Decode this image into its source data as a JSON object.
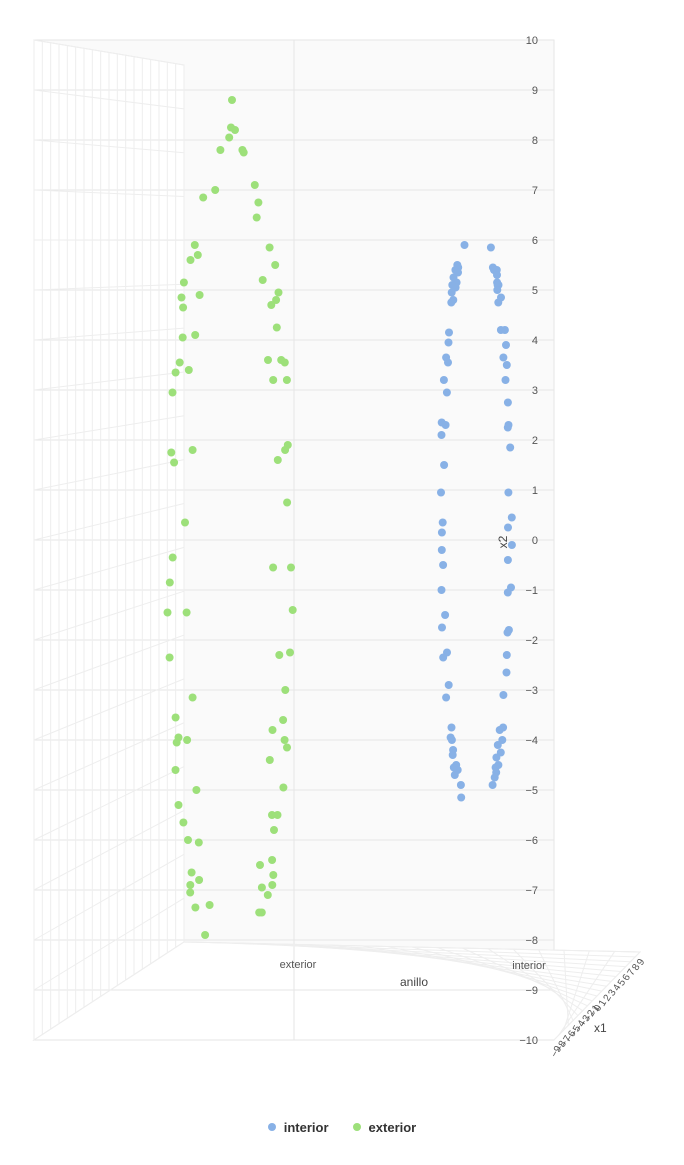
{
  "chart_data": {
    "type": "scatter",
    "title": "",
    "xlabel": "x1",
    "ylabel": "x2",
    "zlabel": "anillo",
    "ylim": [
      -10,
      10
    ],
    "y_ticks": [
      "10",
      "9",
      "8",
      "7",
      "6",
      "5",
      "4",
      "3",
      "2",
      "1",
      "0",
      "−1",
      "−2",
      "−3",
      "−4",
      "−5",
      "−6",
      "−7",
      "−8",
      "−9",
      "−10"
    ],
    "x_ticks": [
      "−9",
      "−8",
      "−7",
      "−6",
      "−5",
      "−4",
      "−3",
      "−2",
      "−1",
      "0",
      "1",
      "2",
      "3",
      "4",
      "5",
      "6",
      "7",
      "8",
      "9"
    ],
    "z_categories": [
      "exterior",
      "interior"
    ],
    "grid": true,
    "legend_position": "bottom-center",
    "series": [
      {
        "name": "interior",
        "color": "#88b1e6",
        "y": [
          5.9,
          5.85,
          5.5,
          5.45,
          5.45,
          5.4,
          5.4,
          5.4,
          5.35,
          5.3,
          5.25,
          5.15,
          5.15,
          5.1,
          5.1,
          5.1,
          5.05,
          5.0,
          4.95,
          4.85,
          4.8,
          4.75,
          4.75,
          4.2,
          4.15,
          4.2,
          3.95,
          3.9,
          3.65,
          3.65,
          3.55,
          3.5,
          3.2,
          3.2,
          2.95,
          2.75,
          2.35,
          2.3,
          2.3,
          2.25,
          2.1,
          1.85,
          1.5,
          0.95,
          0.95,
          0.45,
          0.35,
          0.25,
          0.15,
          -0.1,
          -0.2,
          -0.4,
          -0.5,
          -0.95,
          -1.0,
          -1.05,
          -1.5,
          -1.8,
          -1.75,
          -1.85,
          -2.25,
          -2.3,
          -2.35,
          -2.65,
          -2.9,
          -3.1,
          -3.15,
          -3.75,
          -3.75,
          -3.8,
          -3.95,
          -4.0,
          -4.0,
          -4.1,
          -4.2,
          -4.25,
          -4.3,
          -4.35,
          -4.5,
          -4.5,
          -4.55,
          -4.55,
          -4.6,
          -4.65,
          -4.7,
          -4.75,
          -4.9,
          -4.9,
          -5.15
        ]
      },
      {
        "name": "exterior",
        "color": "#9de07a",
        "y": [
          8.8,
          8.2,
          8.25,
          8.05,
          7.8,
          7.75,
          7.8,
          7.1,
          7.0,
          6.85,
          6.75,
          6.45,
          5.9,
          5.85,
          5.7,
          5.6,
          5.5,
          5.2,
          5.15,
          4.95,
          4.9,
          4.85,
          4.8,
          4.7,
          4.65,
          4.25,
          4.1,
          4.05,
          3.6,
          3.6,
          3.55,
          3.55,
          3.4,
          3.35,
          3.2,
          3.2,
          2.95,
          1.9,
          1.8,
          1.75,
          1.8,
          1.6,
          1.55,
          0.75,
          0.35,
          -0.35,
          -0.55,
          -0.55,
          -0.85,
          -1.4,
          -1.45,
          -1.45,
          -2.25,
          -2.3,
          -2.35,
          -3.0,
          -3.15,
          -3.55,
          -3.6,
          -3.8,
          -3.95,
          -4.0,
          -4.0,
          -4.05,
          -4.15,
          -4.4,
          -4.6,
          -4.95,
          -5.0,
          -5.3,
          -5.5,
          -5.5,
          -5.65,
          -5.8,
          -6.05,
          -6.0,
          -6.4,
          -6.5,
          -6.65,
          -6.7,
          -6.8,
          -6.9,
          -6.9,
          -6.95,
          -7.05,
          -7.1,
          -7.3,
          -7.35,
          -7.45,
          -7.45,
          -7.9
        ]
      }
    ]
  }
}
